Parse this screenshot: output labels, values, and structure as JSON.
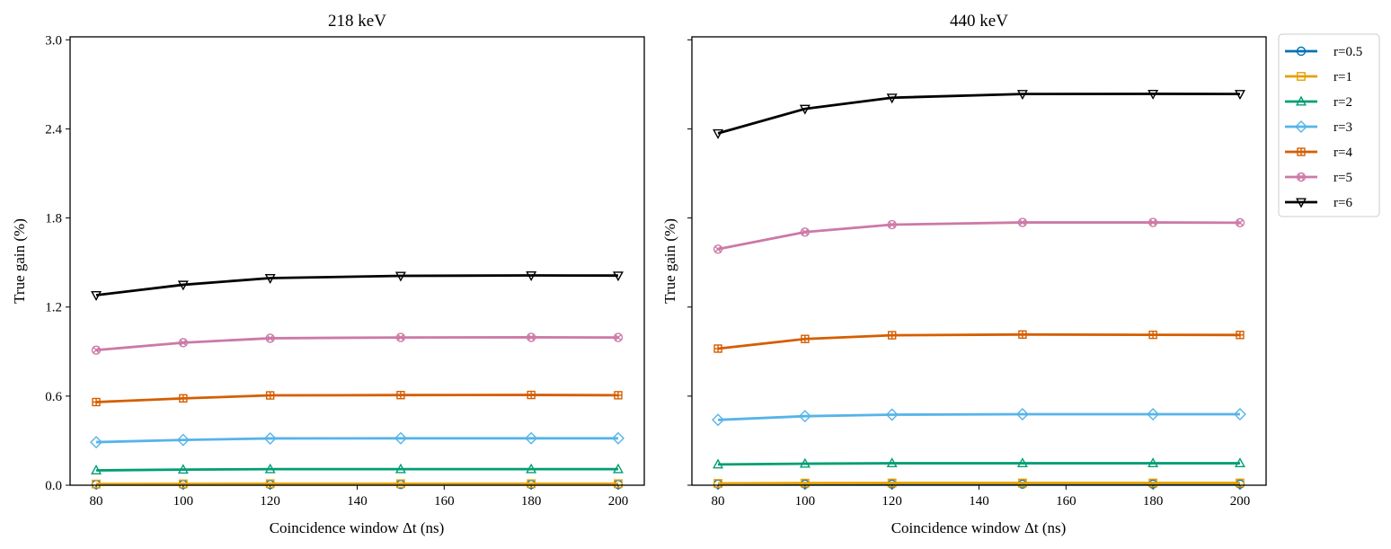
{
  "chart_data": [
    {
      "type": "line",
      "title": "218 keV",
      "xlabel": "Coincidence window Δt (ns)",
      "ylabel": "True gain (%)",
      "x": [
        80,
        100,
        120,
        150,
        180,
        200
      ],
      "xticks": [
        80,
        100,
        120,
        140,
        160,
        180,
        200
      ],
      "xlim": [
        74,
        206
      ],
      "ylim": [
        0,
        3.02
      ],
      "yticks": [
        0.0,
        0.6,
        1.2,
        1.8,
        2.4,
        3.0
      ],
      "ytick_labels": [
        "0.0",
        "0.6",
        "1.2",
        "1.8",
        "2.4",
        "3.0"
      ],
      "series": [
        {
          "name": "r=0.5",
          "values": [
            0.005,
            0.005,
            0.005,
            0.005,
            0.005,
            0.005
          ]
        },
        {
          "name": "r=1",
          "values": [
            0.008,
            0.009,
            0.01,
            0.01,
            0.01,
            0.01
          ]
        },
        {
          "name": "r=2",
          "values": [
            0.1,
            0.105,
            0.108,
            0.108,
            0.108,
            0.108
          ]
        },
        {
          "name": "r=3",
          "values": [
            0.29,
            0.305,
            0.315,
            0.316,
            0.316,
            0.316
          ]
        },
        {
          "name": "r=4",
          "values": [
            0.56,
            0.585,
            0.605,
            0.607,
            0.608,
            0.606
          ]
        },
        {
          "name": "r=5",
          "values": [
            0.91,
            0.96,
            0.99,
            0.995,
            0.996,
            0.995
          ]
        },
        {
          "name": "r=6",
          "values": [
            1.28,
            1.35,
            1.395,
            1.41,
            1.413,
            1.412
          ]
        }
      ]
    },
    {
      "type": "line",
      "title": "440 keV",
      "xlabel": "Coincidence window Δt (ns)",
      "ylabel": "True gain (%)",
      "x": [
        80,
        100,
        120,
        150,
        180,
        200
      ],
      "xticks": [
        80,
        100,
        120,
        140,
        160,
        180,
        200
      ],
      "xlim": [
        74,
        206
      ],
      "ylim": [
        0,
        3.02
      ],
      "yticks": [
        0.0,
        0.6,
        1.2,
        1.8,
        2.4,
        3.0
      ],
      "ytick_labels": [],
      "series": [
        {
          "name": "r=0.5",
          "values": [
            0.007,
            0.007,
            0.007,
            0.007,
            0.007,
            0.007
          ]
        },
        {
          "name": "r=1",
          "values": [
            0.012,
            0.014,
            0.015,
            0.015,
            0.015,
            0.015
          ]
        },
        {
          "name": "r=2",
          "values": [
            0.14,
            0.145,
            0.148,
            0.148,
            0.148,
            0.148
          ]
        },
        {
          "name": "r=3",
          "values": [
            0.44,
            0.465,
            0.475,
            0.478,
            0.478,
            0.478
          ]
        },
        {
          "name": "r=4",
          "values": [
            0.92,
            0.985,
            1.01,
            1.015,
            1.013,
            1.012
          ]
        },
        {
          "name": "r=5",
          "values": [
            1.59,
            1.705,
            1.755,
            1.77,
            1.77,
            1.768
          ]
        },
        {
          "name": "r=6",
          "values": [
            2.37,
            2.535,
            2.61,
            2.635,
            2.636,
            2.635
          ]
        }
      ]
    }
  ],
  "legend": [
    {
      "name": "r=0.5",
      "color": "#0072B2",
      "marker": "circle"
    },
    {
      "name": "r=1",
      "color": "#E69F00",
      "marker": "square"
    },
    {
      "name": "r=2",
      "color": "#009E73",
      "marker": "triangle-up"
    },
    {
      "name": "r=3",
      "color": "#56B4E9",
      "marker": "diamond"
    },
    {
      "name": "r=4",
      "color": "#D55E00",
      "marker": "plus-square"
    },
    {
      "name": "r=5",
      "color": "#CC79A7",
      "marker": "x-circle"
    },
    {
      "name": "r=6",
      "color": "#000000",
      "marker": "triangle-down"
    }
  ]
}
